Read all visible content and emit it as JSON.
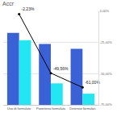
{
  "chart_data": {
    "type": "bar",
    "title": "Accr",
    "categories": [
      "Uso di formulato",
      "Panetteria formulata",
      "Detersivi formulati"
    ],
    "series": [
      {
        "type": "bar",
        "color": "#3a62d6",
        "values": [
          77,
          65,
          60
        ]
      },
      {
        "type": "bar",
        "color": "#22e6f2",
        "values": [
          69,
          23,
          12
        ]
      },
      {
        "type": "line",
        "color": "#000000",
        "axis": "y2",
        "marker": "circle",
        "data_labels": true,
        "values": [
          -2.23,
          -49.56,
          -61
        ],
        "value_labels": [
          "-2,23%",
          "-49,56%",
          "-61,00%"
        ]
      }
    ],
    "ylim": [
      0,
      100
    ],
    "y2lim": [
      -75,
      0
    ],
    "y2ticks": [
      {
        "value": 0,
        "label": "0,00%"
      },
      {
        "value": -25,
        "label": "-25,00%"
      },
      {
        "value": -50,
        "label": "-50,00%"
      },
      {
        "value": -75,
        "label": "-75,00%"
      }
    ],
    "grid": true
  }
}
